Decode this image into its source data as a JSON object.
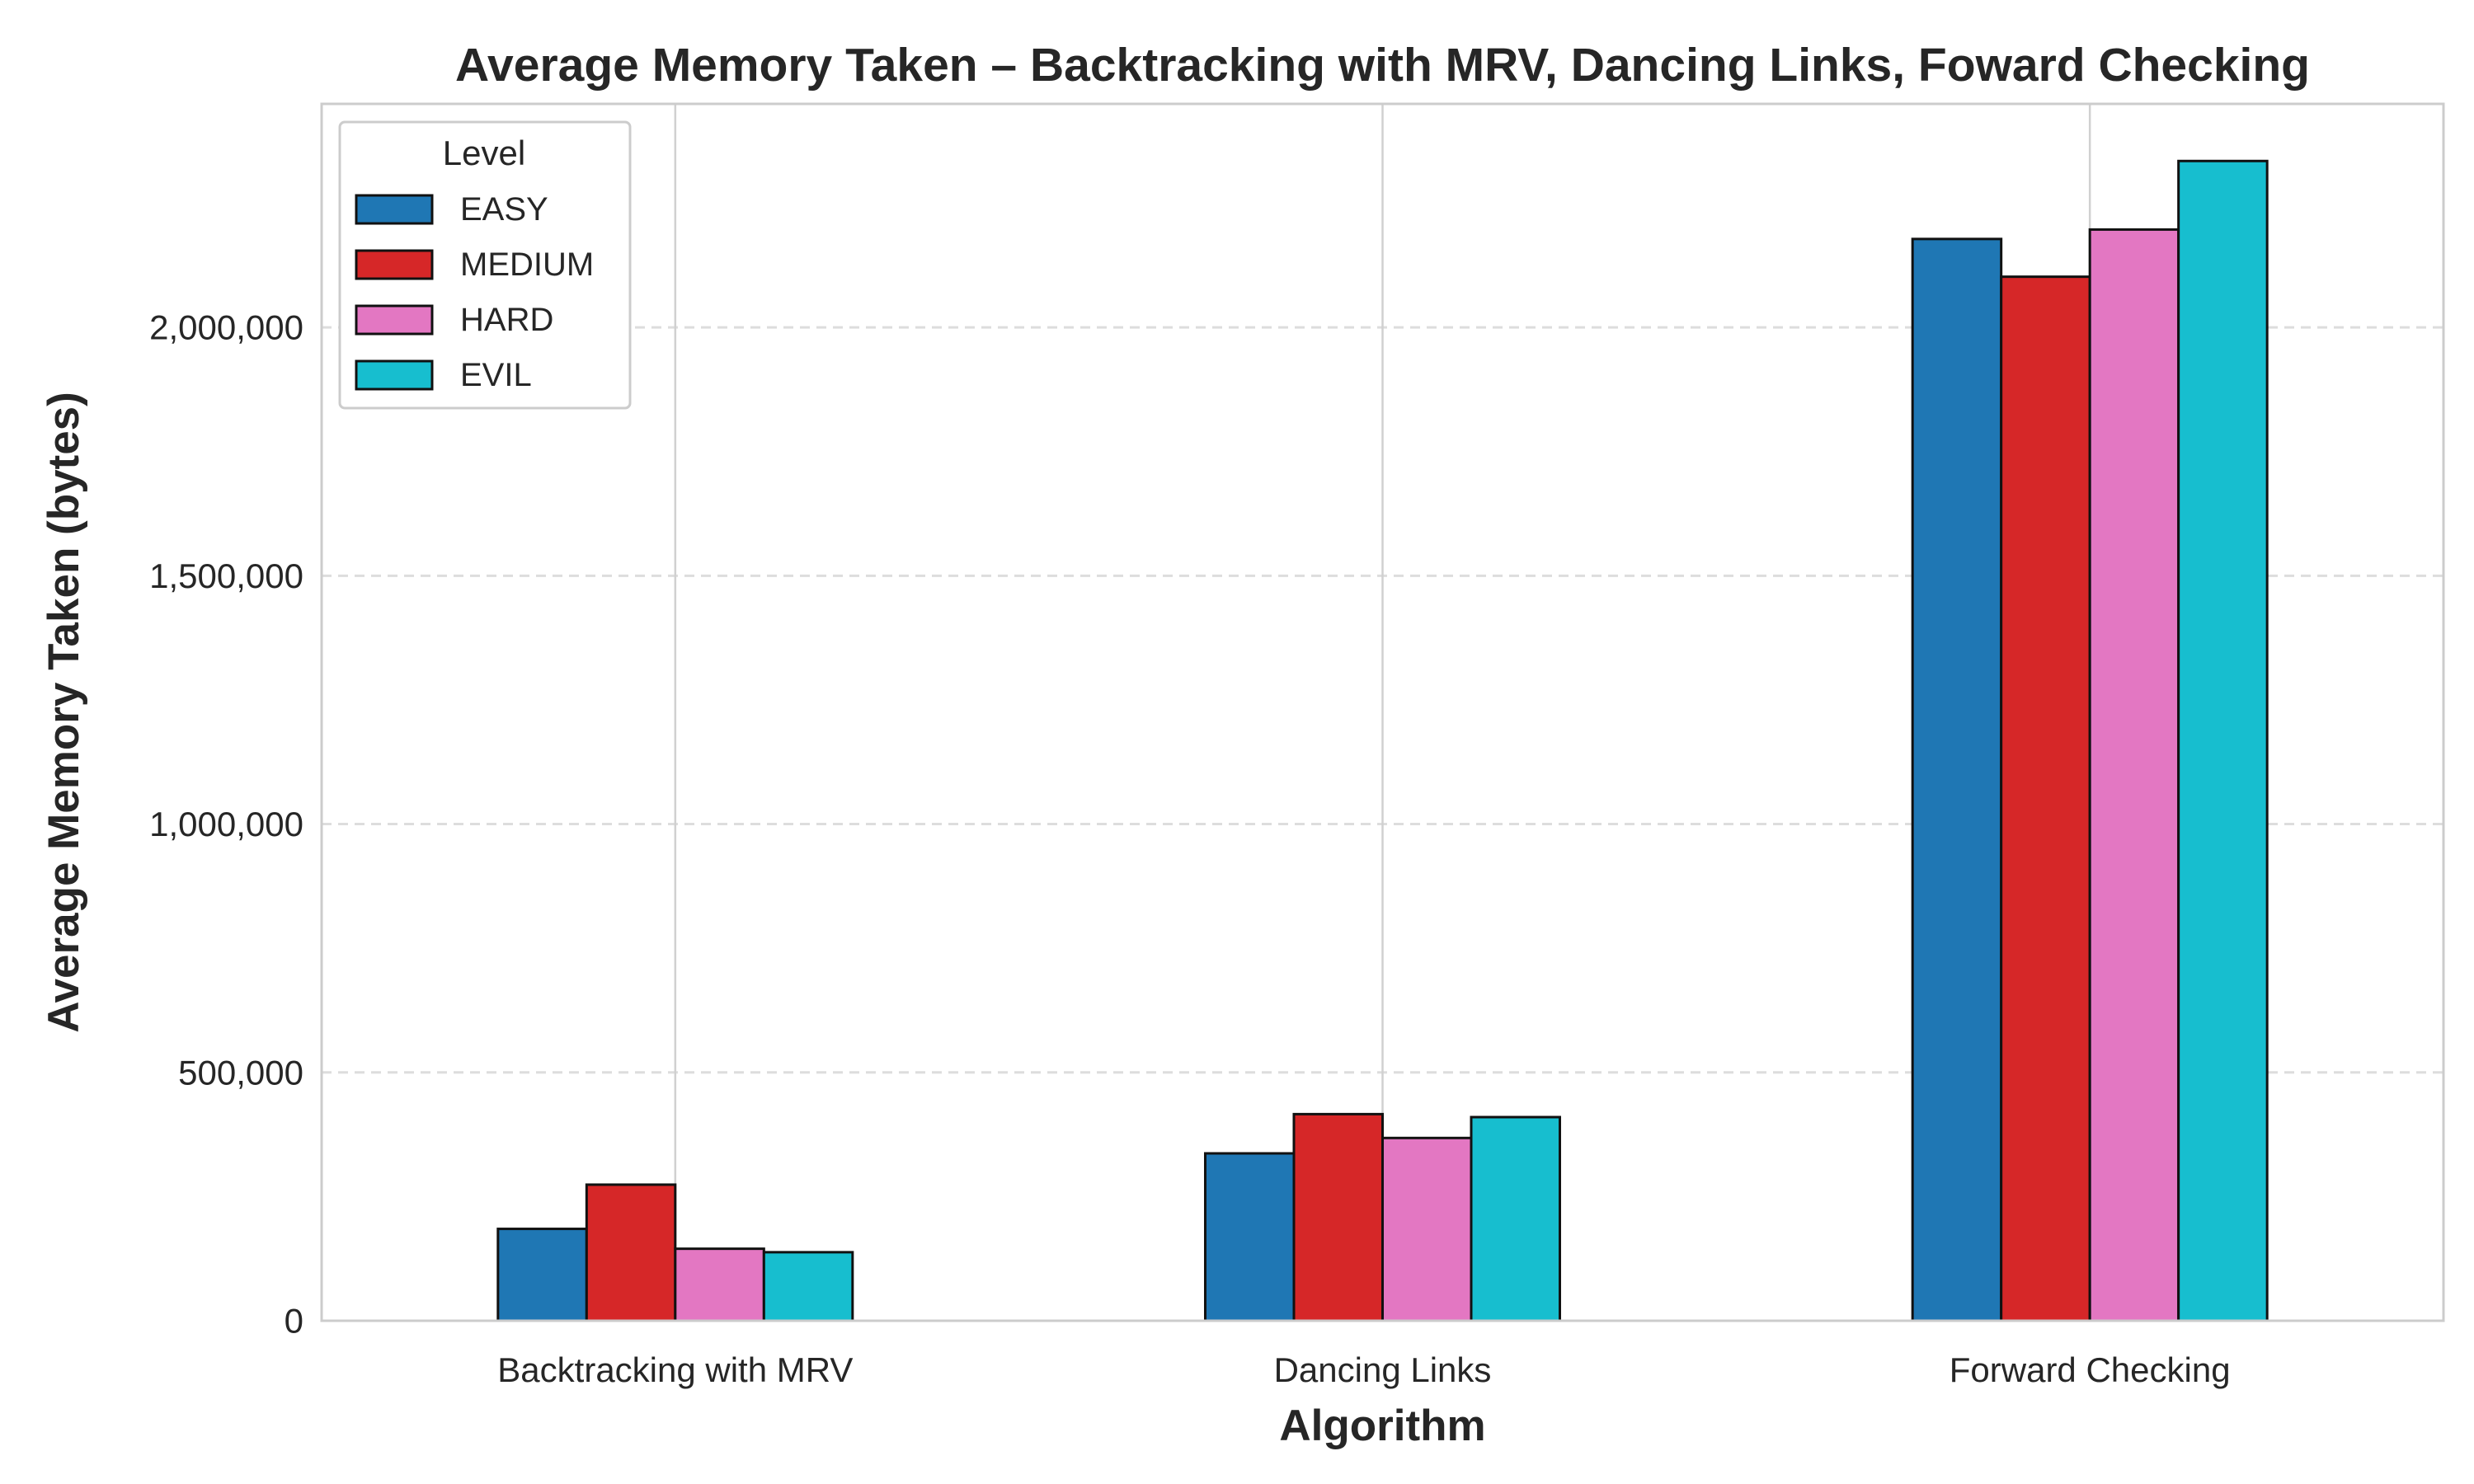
{
  "chart_data": {
    "type": "bar",
    "title": "Average Memory Taken – Backtracking with MRV, Dancing Links, Foward Checking",
    "xlabel": "Algorithm",
    "ylabel": "Average Memory Taken (bytes)",
    "categories": [
      "Backtracking with MRV",
      "Dancing Links",
      "Forward Checking"
    ],
    "series": [
      {
        "name": "EASY",
        "color": "#1f77b4",
        "values": [
          185000,
          337000,
          2178000
        ]
      },
      {
        "name": "MEDIUM",
        "color": "#d62728",
        "values": [
          274000,
          416000,
          2102000
        ]
      },
      {
        "name": "HARD",
        "color": "#e377c2",
        "values": [
          145000,
          368000,
          2197000
        ]
      },
      {
        "name": "EVIL",
        "color": "#17becf",
        "values": [
          138000,
          410000,
          2335000
        ]
      }
    ],
    "ylim": [
      0,
      2450000
    ],
    "yticks": [
      0,
      500000,
      1000000,
      1500000,
      2000000
    ],
    "ytick_labels": [
      "0",
      "500,000",
      "1,000,000",
      "1,500,000",
      "2,000,000"
    ],
    "legend": {
      "title": "Level",
      "position": "top-left"
    },
    "grid": {
      "y": "dashed",
      "x": "solid at categories"
    }
  }
}
